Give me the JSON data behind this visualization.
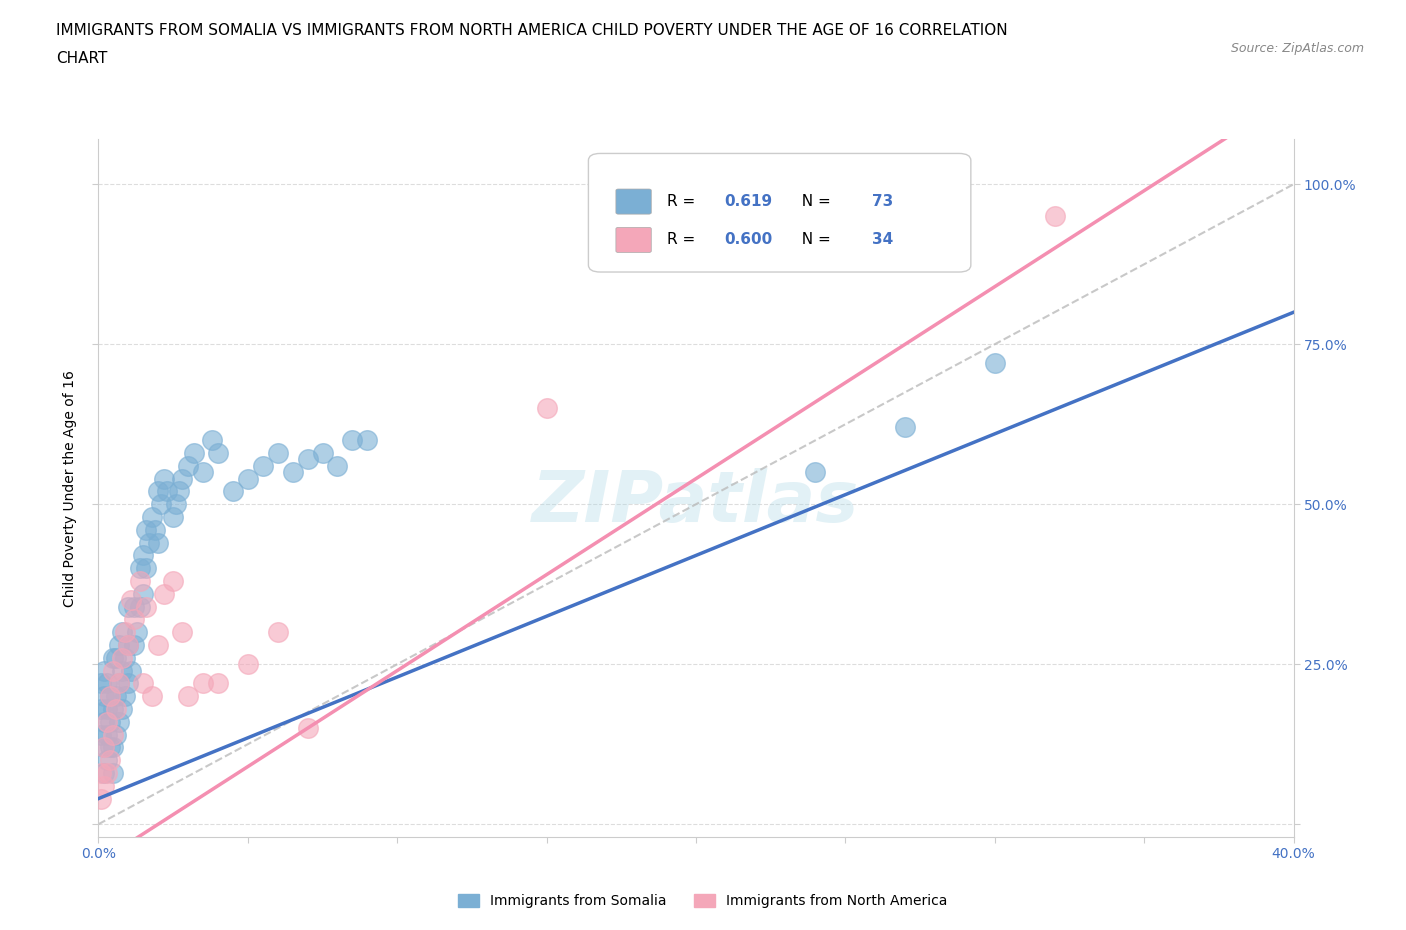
{
  "title_line1": "IMMIGRANTS FROM SOMALIA VS IMMIGRANTS FROM NORTH AMERICA CHILD POVERTY UNDER THE AGE OF 16 CORRELATION",
  "title_line2": "CHART",
  "source_text": "Source: ZipAtlas.com",
  "ylabel": "Child Poverty Under the Age of 16",
  "xlim": [
    0.0,
    0.4
  ],
  "ylim": [
    -0.02,
    1.07
  ],
  "ytick_positions": [
    0.0,
    0.25,
    0.5,
    0.75,
    1.0
  ],
  "yticklabels": [
    "",
    "25.0%",
    "50.0%",
    "75.0%",
    "100.0%"
  ],
  "watermark": "ZIPatlas",
  "legend_r1": "0.619",
  "legend_n1": "73",
  "legend_r2": "0.600",
  "legend_n2": "34",
  "legend_label1": "Immigrants from Somalia",
  "legend_label2": "Immigrants from North America",
  "color_somalia": "#7BAFD4",
  "color_north_america": "#F4A7B9",
  "color_somalia_line": "#4472C4",
  "color_north_america_line": "#F48FB1",
  "color_dashed_line": "#BBBBBB",
  "somalia_x": [
    0.001,
    0.001,
    0.001,
    0.002,
    0.002,
    0.002,
    0.002,
    0.002,
    0.003,
    0.003,
    0.003,
    0.003,
    0.004,
    0.004,
    0.004,
    0.005,
    0.005,
    0.005,
    0.005,
    0.006,
    0.006,
    0.006,
    0.007,
    0.007,
    0.007,
    0.008,
    0.008,
    0.008,
    0.009,
    0.009,
    0.01,
    0.01,
    0.01,
    0.011,
    0.012,
    0.012,
    0.013,
    0.014,
    0.014,
    0.015,
    0.015,
    0.016,
    0.016,
    0.017,
    0.018,
    0.019,
    0.02,
    0.02,
    0.021,
    0.022,
    0.023,
    0.025,
    0.026,
    0.027,
    0.028,
    0.03,
    0.032,
    0.035,
    0.038,
    0.04,
    0.045,
    0.05,
    0.055,
    0.06,
    0.065,
    0.07,
    0.075,
    0.08,
    0.085,
    0.09,
    0.24,
    0.27,
    0.3
  ],
  "somalia_y": [
    0.14,
    0.18,
    0.22,
    0.08,
    0.12,
    0.16,
    0.2,
    0.24,
    0.1,
    0.14,
    0.18,
    0.22,
    0.12,
    0.16,
    0.2,
    0.08,
    0.12,
    0.18,
    0.26,
    0.14,
    0.2,
    0.26,
    0.16,
    0.22,
    0.28,
    0.18,
    0.24,
    0.3,
    0.2,
    0.26,
    0.22,
    0.28,
    0.34,
    0.24,
    0.28,
    0.34,
    0.3,
    0.34,
    0.4,
    0.36,
    0.42,
    0.4,
    0.46,
    0.44,
    0.48,
    0.46,
    0.44,
    0.52,
    0.5,
    0.54,
    0.52,
    0.48,
    0.5,
    0.52,
    0.54,
    0.56,
    0.58,
    0.55,
    0.6,
    0.58,
    0.52,
    0.54,
    0.56,
    0.58,
    0.55,
    0.57,
    0.58,
    0.56,
    0.6,
    0.6,
    0.55,
    0.62,
    0.72
  ],
  "north_america_x": [
    0.001,
    0.001,
    0.002,
    0.002,
    0.003,
    0.003,
    0.004,
    0.004,
    0.005,
    0.005,
    0.006,
    0.007,
    0.008,
    0.009,
    0.01,
    0.011,
    0.012,
    0.014,
    0.015,
    0.016,
    0.018,
    0.02,
    0.022,
    0.025,
    0.028,
    0.03,
    0.035,
    0.04,
    0.05,
    0.06,
    0.07,
    0.32,
    0.28,
    0.15
  ],
  "north_america_y": [
    0.04,
    0.08,
    0.06,
    0.12,
    0.08,
    0.16,
    0.1,
    0.2,
    0.14,
    0.24,
    0.18,
    0.22,
    0.26,
    0.3,
    0.28,
    0.35,
    0.32,
    0.38,
    0.22,
    0.34,
    0.2,
    0.28,
    0.36,
    0.38,
    0.3,
    0.2,
    0.22,
    0.22,
    0.25,
    0.3,
    0.15,
    0.95,
    0.95,
    0.65
  ],
  "grid_color": "#DDDDDD",
  "background_color": "#FFFFFF",
  "axis_color": "#CCCCCC",
  "tick_color": "#4472C4",
  "title_fontsize": 11,
  "axis_label_fontsize": 10,
  "tick_fontsize": 10,
  "source_fontsize": 9
}
